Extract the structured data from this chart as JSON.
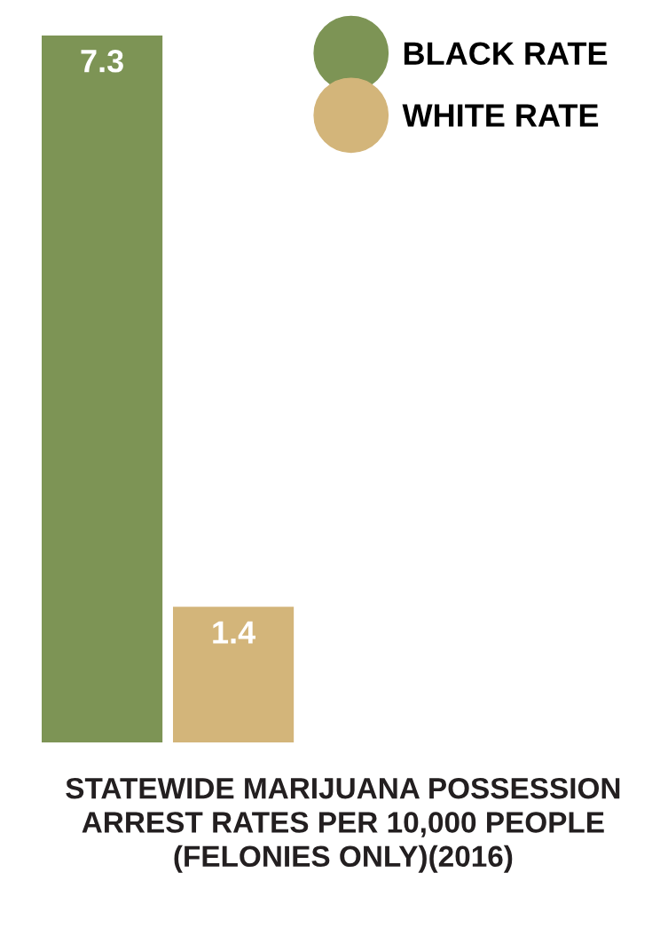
{
  "chart_data": {
    "type": "bar",
    "title": "STATEWIDE MARIJUANA POSSESSION ARREST RATES PER 10,000 PEOPLE (FELONIES ONLY)(2016)",
    "categories": [
      null
    ],
    "series": [
      {
        "name": "BLACK RATE",
        "color": "#7d9455",
        "values": [
          7.3
        ]
      },
      {
        "name": "WHITE RATE",
        "color": "#d3b57a",
        "values": [
          1.4
        ]
      }
    ],
    "data_labels": true,
    "legend": "top right",
    "grid": false
  }
}
